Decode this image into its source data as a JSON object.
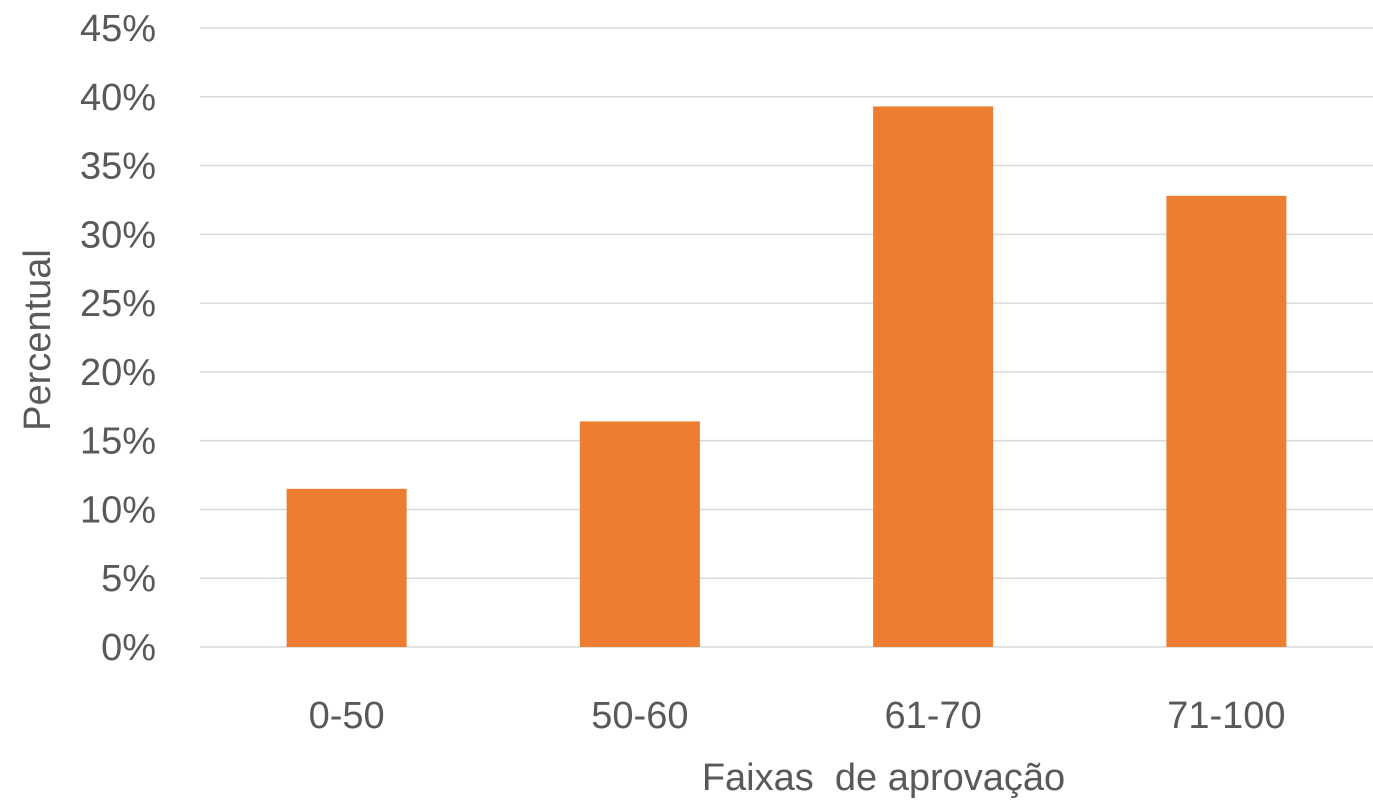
{
  "chart_data": {
    "type": "bar",
    "categories": [
      "0-50",
      "50-60",
      "61-70",
      "71-100"
    ],
    "series": [
      {
        "values": [
          11.5,
          16.4,
          39.3,
          32.8
        ]
      }
    ],
    "title": "",
    "xlabel": "Faixas  de aprovação",
    "ylabel": "Percentual",
    "ylim": [
      0,
      45
    ],
    "y_ticks": [
      0,
      5,
      10,
      15,
      20,
      25,
      30,
      35,
      40,
      45
    ],
    "y_tick_labels": [
      "0%",
      "5%",
      "10%",
      "15%",
      "20%",
      "25%",
      "30%",
      "35%",
      "40%",
      "45%"
    ],
    "grid": true,
    "legend": "none",
    "colors": {
      "bar": "#ED7D31",
      "grid": "#D9D9D9",
      "text": "#595959"
    }
  }
}
